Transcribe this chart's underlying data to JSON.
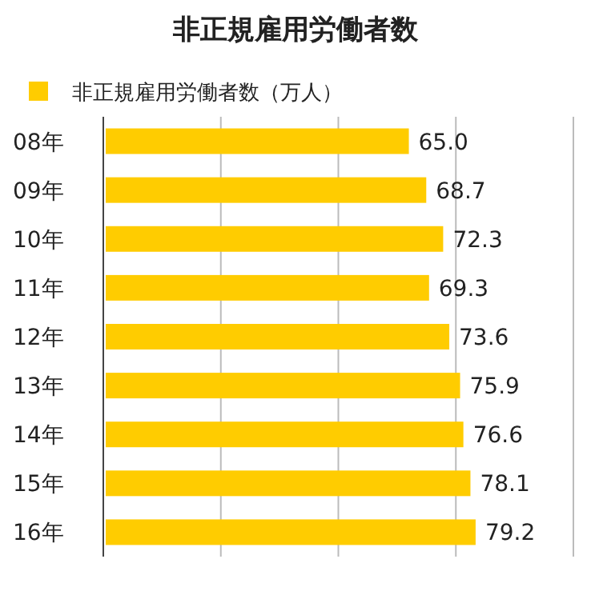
{
  "chart_data": {
    "type": "bar",
    "orientation": "horizontal",
    "title": "非正規雇用労働者数",
    "categories": [
      "08年",
      "09年",
      "10年",
      "11年",
      "12年",
      "13年",
      "14年",
      "15年",
      "16年"
    ],
    "series": [
      {
        "name": "非正規雇用労働者数（万人）",
        "color": "#ffcc00",
        "values": [
          65.0,
          68.7,
          72.3,
          69.3,
          73.6,
          75.9,
          76.6,
          78.1,
          79.2
        ],
        "value_labels": [
          "65.0",
          "68.7",
          "72.3",
          "69.3",
          "73.6",
          "75.9",
          "76.6",
          "78.1",
          "79.2"
        ]
      }
    ],
    "xlim": [
      0,
      100
    ],
    "xticks": [
      {
        "value": 0,
        "label": null
      },
      {
        "value": 25,
        "label": null
      },
      {
        "value": 50,
        "label": null
      },
      {
        "value": 75,
        "label": null
      },
      {
        "value": 100,
        "label": null
      }
    ],
    "grid": "x",
    "legend": "top left",
    "tick_labels": "y"
  }
}
